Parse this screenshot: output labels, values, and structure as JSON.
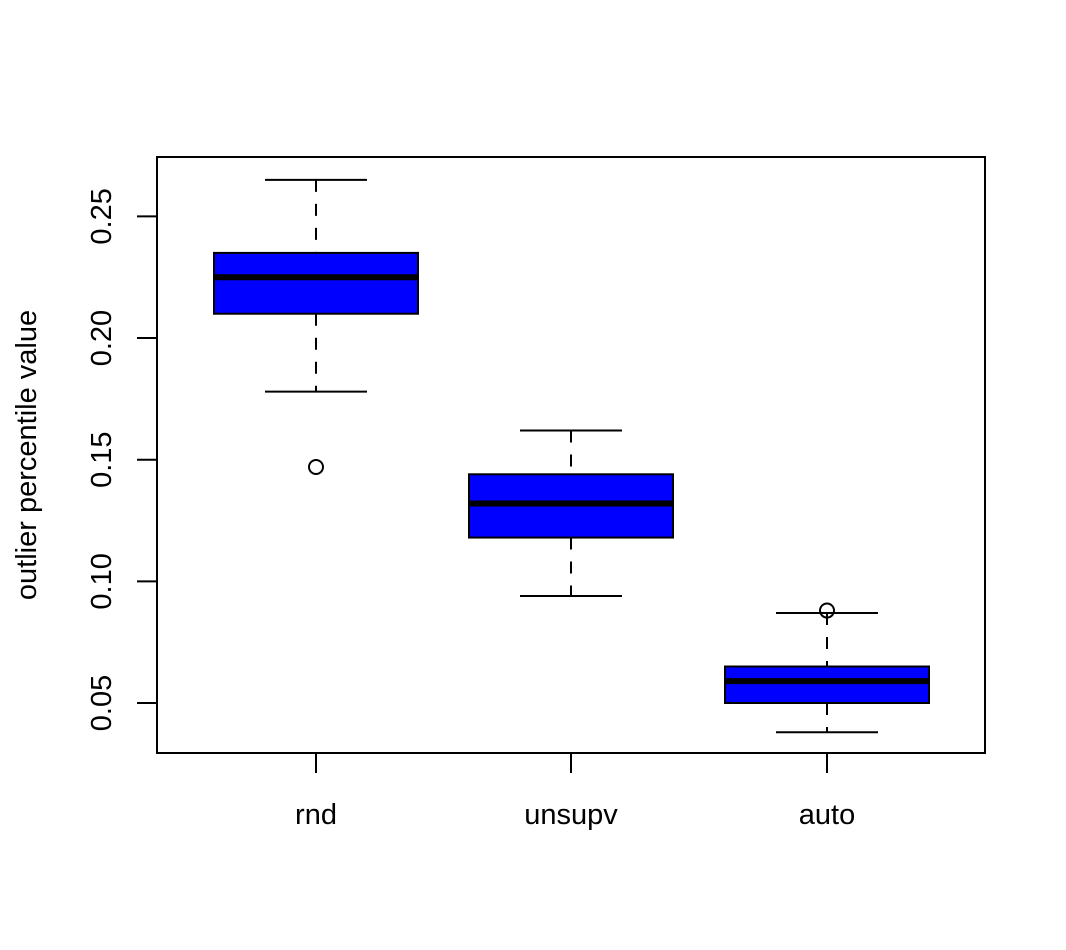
{
  "chart_data": {
    "type": "box",
    "title": "",
    "xlabel": "",
    "ylabel": "outlier percentile value",
    "categories": [
      "rnd",
      "unsupv",
      "auto"
    ],
    "yticks": [
      "0.05",
      "0.10",
      "0.15",
      "0.20",
      "0.25"
    ],
    "ytick_values": [
      0.05,
      0.1,
      0.15,
      0.2,
      0.25
    ],
    "ylim": [
      0.029,
      0.274
    ],
    "grid": false,
    "legend": null,
    "box_color": "#0000ff",
    "series": [
      {
        "name": "rnd",
        "whisker_low": 0.178,
        "q1": 0.21,
        "median": 0.225,
        "q3": 0.235,
        "whisker_high": 0.265,
        "outliers": [
          0.147
        ]
      },
      {
        "name": "unsupv",
        "whisker_low": 0.094,
        "q1": 0.118,
        "median": 0.132,
        "q3": 0.144,
        "whisker_high": 0.162,
        "outliers": []
      },
      {
        "name": "auto",
        "whisker_low": 0.038,
        "q1": 0.05,
        "median": 0.059,
        "q3": 0.065,
        "whisker_high": 0.087,
        "outliers": [
          0.088
        ]
      }
    ]
  }
}
